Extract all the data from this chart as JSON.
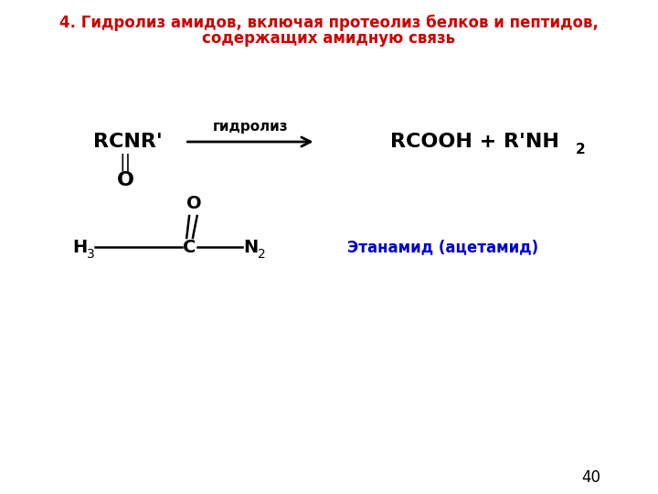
{
  "title_line1": "4. Гидролиз амидов, включая протеолиз белков и пептидов,",
  "title_line2": "содержащих амидную связь",
  "title_color": "#cc0000",
  "title_fontsize": 12,
  "bg_color": "#ffffff",
  "reaction_arrow_label": "гидролиз",
  "molecule_label": "Этанамид (ацетамид)",
  "molecule_label_color": "#0000cc",
  "page_number": "40",
  "text_color": "#000000"
}
